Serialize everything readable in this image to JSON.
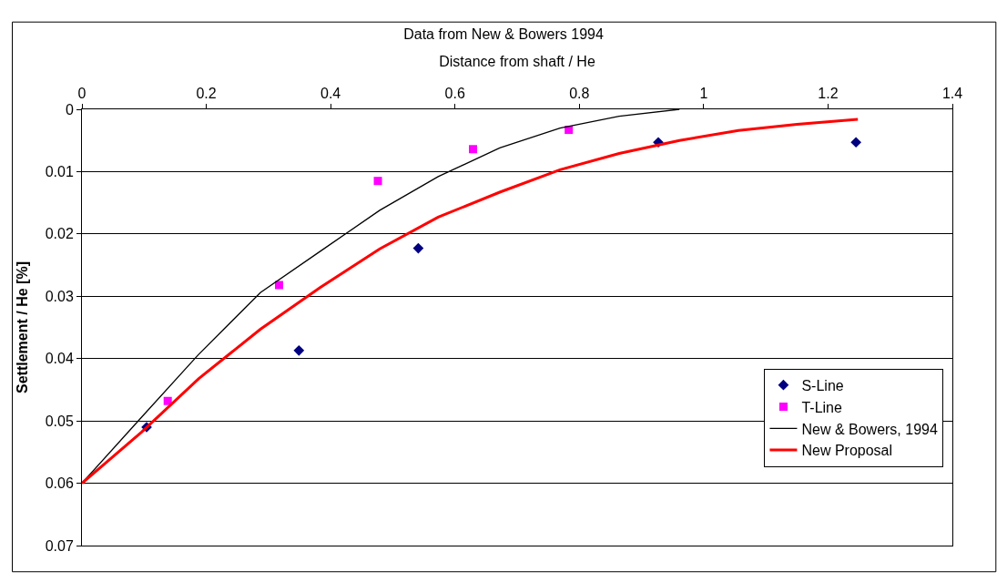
{
  "chart_data": {
    "type": "scatter",
    "title": "Data from New & Bowers 1994",
    "xlabel": "Distance from shaft / He",
    "ylabel": "Settlement / He [%]",
    "xlim": [
      0,
      1.4
    ],
    "xticks": [
      0,
      0.2,
      0.4,
      0.6,
      0.8,
      1,
      1.2,
      1.4
    ],
    "ylim": [
      0.07,
      0
    ],
    "yticks": [
      0,
      0.01,
      0.02,
      0.03,
      0.04,
      0.05,
      0.06,
      0.07
    ],
    "grid": "y",
    "legend": "bottom right",
    "series": [
      {
        "name": "S-Line",
        "marker": "diamond",
        "color": "#000080",
        "x": [
          0.104,
          0.349,
          0.541,
          0.927,
          1.245
        ],
        "values": [
          0.051,
          0.0387,
          0.0223,
          0.0053,
          0.0053
        ]
      },
      {
        "name": "T-Line",
        "marker": "square",
        "color": "#ff00ff",
        "x": [
          0.138,
          0.317,
          0.476,
          0.629,
          0.783
        ],
        "values": [
          0.0468,
          0.0282,
          0.0115,
          0.0064,
          0.0033
        ]
      },
      {
        "name": "New & Bowers, 1994",
        "type": "line",
        "marker": "none",
        "color": "#000000",
        "x": [
          0,
          0.096,
          0.187,
          0.287,
          0.386,
          0.479,
          0.573,
          0.672,
          0.769,
          0.864,
          0.961
        ],
        "values": [
          0.06,
          0.0494,
          0.0394,
          0.0294,
          0.0226,
          0.0162,
          0.0108,
          0.0062,
          0.003,
          0.0011,
          0
        ]
      },
      {
        "name": "New Proposal",
        "type": "line",
        "marker": "none",
        "color": "#ff0000",
        "x": [
          0,
          0.096,
          0.188,
          0.287,
          0.383,
          0.479,
          0.573,
          0.672,
          0.769,
          0.864,
          0.961,
          1.056,
          1.15,
          1.248
        ],
        "values": [
          0.06,
          0.0518,
          0.0432,
          0.0353,
          0.0286,
          0.0224,
          0.0173,
          0.0133,
          0.0097,
          0.0071,
          0.005,
          0.0034,
          0.0024,
          0.0016
        ]
      }
    ]
  }
}
